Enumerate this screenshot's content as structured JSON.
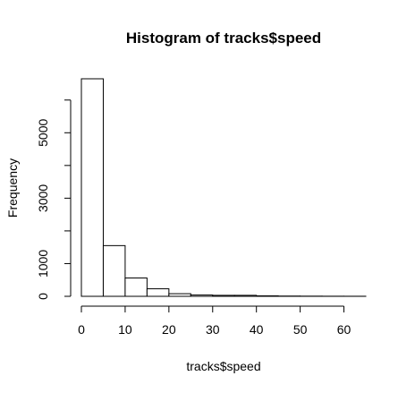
{
  "chart_data": {
    "type": "histogram",
    "title": "Histogram of tracks$speed",
    "xlabel": "tracks$speed",
    "ylabel": "Frequency",
    "bin_edges": [
      0,
      5,
      10,
      15,
      20,
      25,
      30,
      35,
      40,
      45,
      50,
      55,
      60,
      65
    ],
    "counts": [
      6650,
      1550,
      560,
      230,
      80,
      40,
      30,
      30,
      15,
      8,
      5,
      3,
      2
    ],
    "xlim": [
      0,
      65
    ],
    "ylim": [
      0,
      6650
    ],
    "x_ticks": [
      0,
      10,
      20,
      30,
      40,
      50,
      60
    ],
    "x_tick_labels": [
      "0",
      "10",
      "20",
      "30",
      "40",
      "50",
      "60"
    ],
    "y_ticks": [
      0,
      1000,
      3000,
      5000
    ],
    "y_tick_labels": [
      "0",
      "1000",
      "3000",
      "5000"
    ],
    "grid": false,
    "legend": "none"
  }
}
